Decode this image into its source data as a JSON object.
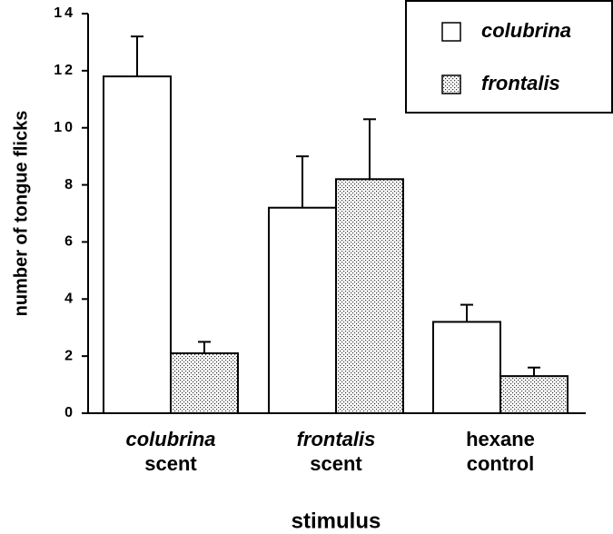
{
  "chart_data": {
    "type": "bar",
    "x_label": "stimulus",
    "y_label": "number of tongue flicks",
    "categories": [
      [
        "colubrina",
        "scent"
      ],
      [
        "frontalis",
        "scent"
      ],
      [
        "hexane",
        "control"
      ]
    ],
    "italic_first_line": [
      true,
      true,
      false
    ],
    "series": [
      {
        "name": "colubrina",
        "color": "#ffffff",
        "pattern": "none",
        "values": [
          11.8,
          7.2,
          3.2
        ],
        "errors": [
          1.4,
          1.8,
          0.6
        ]
      },
      {
        "name": "frontalis",
        "color": "#ffffff",
        "pattern": "dots",
        "values": [
          2.1,
          8.2,
          1.3
        ],
        "errors": [
          0.4,
          2.1,
          0.3
        ]
      }
    ],
    "ylim": [
      0,
      14
    ],
    "yticks": [
      0,
      2,
      4,
      6,
      8,
      10,
      12,
      14
    ],
    "legend": "top-right"
  }
}
